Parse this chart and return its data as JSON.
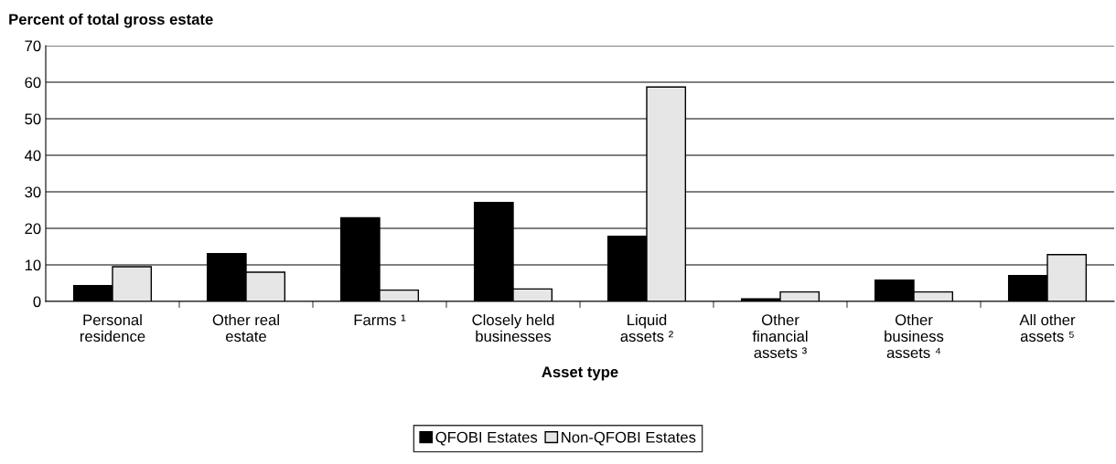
{
  "chart_data": {
    "type": "bar",
    "ylabel": "Percent of total gross estate",
    "xlabel": "Asset type",
    "categories": [
      "Personal\nresidence",
      "Other real\nestate",
      "Farms ¹",
      "Closely held\nbusinesses",
      "Liquid\nassets ²",
      "Other\nfinancial\nassets ³",
      "Other\nbusiness\nassets ⁴",
      "All other\nassets ⁵"
    ],
    "series": [
      {
        "name": "QFOBI Estates",
        "color": "#000000",
        "values": [
          4.3,
          13.1,
          22.9,
          27.1,
          17.8,
          0.7,
          5.8,
          7.1
        ]
      },
      {
        "name": "Non-QFOBI Estates",
        "color": "#e6e6e6",
        "values": [
          9.5,
          8.0,
          3.1,
          3.4,
          58.7,
          2.6,
          2.6,
          12.8
        ]
      }
    ],
    "ylim": [
      0,
      70
    ],
    "yticks": [
      0,
      10,
      20,
      30,
      40,
      50,
      60,
      70
    ],
    "grid": "y",
    "legend": "bottom"
  }
}
